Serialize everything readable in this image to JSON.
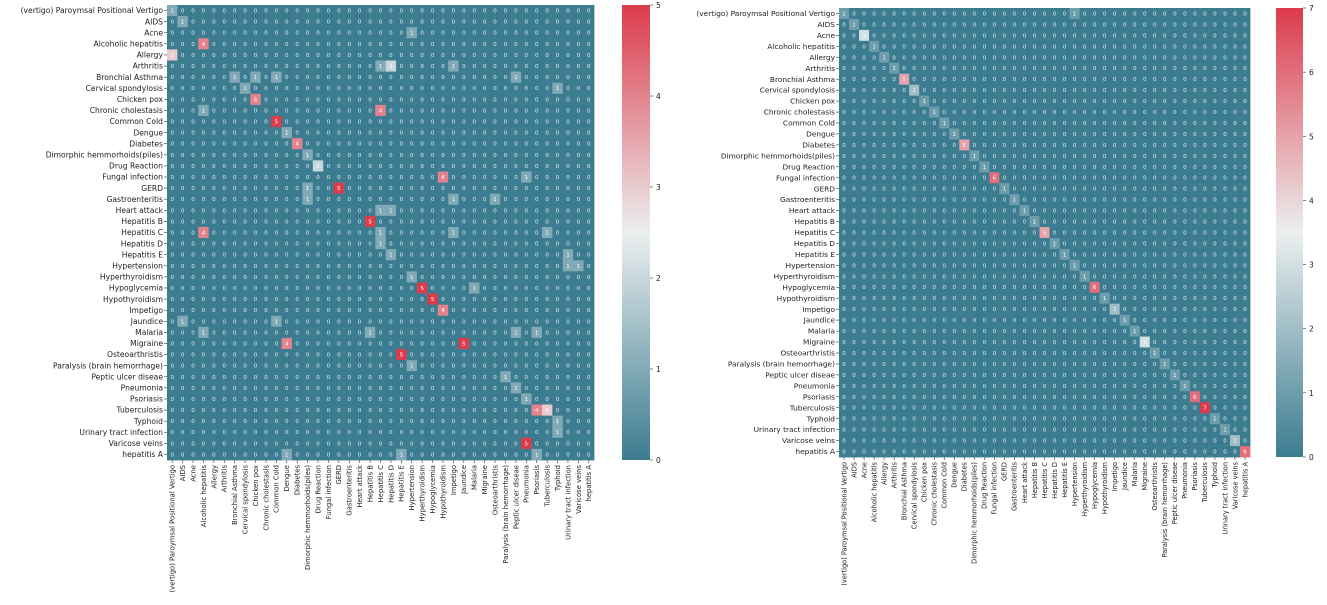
{
  "chart_data": [
    {
      "type": "heatmap",
      "title": "",
      "xlabel": "",
      "ylabel": "",
      "value_range": [
        0,
        5
      ],
      "colorbar_ticks": [
        "0",
        "1",
        "2",
        "3",
        "4",
        "5"
      ],
      "row_labels": [
        "(vertigo) Paroymsal  Positional Vertigo",
        "AIDS",
        "Acne",
        "Alcoholic hepatitis",
        "Allergy",
        "Arthritis",
        "Bronchial Asthma",
        "Cervical spondylosis",
        "Chicken pox",
        "Chronic cholestasis",
        "Common Cold",
        "Dengue",
        "Diabetes",
        "Dimorphic hemmorhoids(piles)",
        "Drug Reaction",
        "Fungal infection",
        "GERD",
        "Gastroenteritis",
        "Heart attack",
        "Hepatitis B",
        "Hepatitis C",
        "Hepatitis D",
        "Hepatitis E",
        "Hypertension",
        "Hyperthyroidism",
        "Hypoglycemia",
        "Hypothyroidism",
        "Impetigo",
        "Jaundice",
        "Malaria",
        "Migraine",
        "Osteoarthristis",
        "Paralysis (brain hemorrhage)",
        "Peptic ulcer diseae",
        "Pneumonia",
        "Psoriasis",
        "Tuberculosis",
        "Typhoid",
        "Urinary tract infection",
        "Varicose veins",
        "hepatitis A"
      ],
      "col_labels": [
        "(vertigo) Paroymsal  Positional Vertigo",
        "AIDS",
        "Acne",
        "Alcoholic hepatitis",
        "Allergy",
        "Arthritis",
        "Bronchial Asthma",
        "Cervical spondylosis",
        "Chicken pox",
        "Chronic cholestasis",
        "Common Cold",
        "Dengue",
        "Diabetes",
        "Dimorphic hemmorhoids(piles)",
        "Drug Reaction",
        "Fungal infection",
        "GERD",
        "Gastroenteritis",
        "Heart attack",
        "Hepatitis B",
        "Hepatitis C",
        "Hepatitis D",
        "Hepatitis E",
        "Hypertension",
        "Hyperthyroidism",
        "Hypoglycemia",
        "Hypothyroidism",
        "Impetigo",
        "Jaundice",
        "Malaria",
        "Migraine",
        "Osteoarthristis",
        "Paralysis (brain hemorrhage)",
        "Peptic ulcer diseae",
        "Pneumonia",
        "Psoriasis",
        "Tuberculosis",
        "Typhoid",
        "Urinary tract infection",
        "Varicose veins",
        "hepatitis A"
      ],
      "nonzero": [
        [
          0,
          0,
          1
        ],
        [
          1,
          1,
          1
        ],
        [
          2,
          23,
          1
        ],
        [
          3,
          3,
          4
        ],
        [
          4,
          0,
          3
        ],
        [
          5,
          20,
          1
        ],
        [
          5,
          21,
          2
        ],
        [
          5,
          27,
          1
        ],
        [
          6,
          6,
          1
        ],
        [
          6,
          8,
          1
        ],
        [
          6,
          10,
          1
        ],
        [
          6,
          33,
          1
        ],
        [
          7,
          7,
          1
        ],
        [
          7,
          37,
          1
        ],
        [
          8,
          8,
          4
        ],
        [
          9,
          3,
          1
        ],
        [
          9,
          20,
          4
        ],
        [
          10,
          10,
          5
        ],
        [
          11,
          11,
          1
        ],
        [
          12,
          12,
          4
        ],
        [
          13,
          13,
          1
        ],
        [
          14,
          14,
          2
        ],
        [
          15,
          26,
          4
        ],
        [
          15,
          34,
          1
        ],
        [
          16,
          13,
          1
        ],
        [
          16,
          16,
          5
        ],
        [
          17,
          13,
          1
        ],
        [
          17,
          27,
          1
        ],
        [
          17,
          31,
          1
        ],
        [
          18,
          20,
          1
        ],
        [
          18,
          21,
          1
        ],
        [
          19,
          19,
          5
        ],
        [
          20,
          3,
          4
        ],
        [
          20,
          20,
          1
        ],
        [
          20,
          27,
          1
        ],
        [
          20,
          36,
          1
        ],
        [
          21,
          20,
          1
        ],
        [
          22,
          21,
          1
        ],
        [
          22,
          38,
          1
        ],
        [
          23,
          38,
          1
        ],
        [
          23,
          39,
          1
        ],
        [
          24,
          23,
          1
        ],
        [
          25,
          24,
          5
        ],
        [
          25,
          29,
          1
        ],
        [
          26,
          25,
          5
        ],
        [
          27,
          26,
          4
        ],
        [
          28,
          1,
          1
        ],
        [
          28,
          10,
          1
        ],
        [
          29,
          3,
          1
        ],
        [
          29,
          19,
          1
        ],
        [
          29,
          33,
          1
        ],
        [
          29,
          35,
          1
        ],
        [
          30,
          11,
          4
        ],
        [
          30,
          28,
          5
        ],
        [
          31,
          22,
          5
        ],
        [
          32,
          23,
          1
        ],
        [
          33,
          32,
          1
        ],
        [
          34,
          33,
          1
        ],
        [
          35,
          34,
          1
        ],
        [
          36,
          35,
          4
        ],
        [
          36,
          36,
          3
        ],
        [
          37,
          37,
          1
        ],
        [
          38,
          37,
          1
        ],
        [
          39,
          34,
          5
        ],
        [
          40,
          11,
          1
        ],
        [
          40,
          22,
          1
        ],
        [
          40,
          35,
          1
        ]
      ]
    },
    {
      "type": "heatmap",
      "title": "",
      "xlabel": "",
      "ylabel": "",
      "value_range": [
        0,
        7
      ],
      "colorbar_ticks": [
        "0",
        "1",
        "2",
        "3",
        "4",
        "5",
        "6",
        "7"
      ],
      "row_labels": [
        "(vertigo) Paroymsal  Positional Vertigo",
        "AIDS",
        "Acne",
        "Alcoholic hepatitis",
        "Allergy",
        "Arthritis",
        "Bronchial Asthma",
        "Cervical spondylosis",
        "Chicken pox",
        "Chronic cholestasis",
        "Common Cold",
        "Dengue",
        "Diabetes",
        "Dimorphic hemmorhoids(piles)",
        "Drug Reaction",
        "Fungal infection",
        "GERD",
        "Gastroenteritis",
        "Heart attack",
        "Hepatitis B",
        "Hepatitis C",
        "Hepatitis D",
        "Hepatitis E",
        "Hypertension",
        "Hyperthyroidism",
        "Hypoglycemia",
        "Hypothyroidism",
        "Impetigo",
        "Jaundice",
        "Malaria",
        "Migraine",
        "Osteoarthristis",
        "Paralysis (brain hemorrhage)",
        "Peptic ulcer diseae",
        "Pneumonia",
        "Psoriasis",
        "Tuberculosis",
        "Typhoid",
        "Urinary tract infection",
        "Varicose veins",
        "hepatitis A"
      ],
      "col_labels": [
        "(vertigo) Paroymsal  Positional Vertigo",
        "AIDS",
        "Acne",
        "Alcoholic hepatitis",
        "Allergy",
        "Arthritis",
        "Bronchial Asthma",
        "Cervical spondylosis",
        "Chicken pox",
        "Chronic cholestasis",
        "Common Cold",
        "Dengue",
        "Diabetes",
        "Dimorphic hemmorhoids(piles)",
        "Drug Reaction",
        "Fungal infection",
        "GERD",
        "Gastroenteritis",
        "Heart attack",
        "Hepatitis B",
        "Hepatitis C",
        "Hepatitis D",
        "Hepatitis E",
        "Hypertension",
        "Hyperthyroidism",
        "Hypoglycemia",
        "Hypothyroidism",
        "Impetigo",
        "Jaundice",
        "Malaria",
        "Migraine",
        "Osteoarthristis",
        "Paralysis (brain hemorrhage)",
        "Peptic ulcer diseae",
        "Pneumonia",
        "Psoriasis",
        "Tuberculosis",
        "Typhoid",
        "Urinary tract infection",
        "Varicose veins",
        "hepatitis A"
      ],
      "diagonal": [
        1,
        1,
        3,
        1,
        1,
        1,
        5,
        2,
        1,
        1,
        1,
        1,
        5,
        1,
        1,
        6,
        1,
        1,
        1,
        1,
        5,
        1,
        1,
        1,
        1,
        6,
        1,
        2,
        1,
        1,
        3,
        1,
        1,
        1,
        1,
        6,
        7,
        1,
        1,
        2,
        6
      ],
      "nonzero": [
        [
          0,
          23,
          1
        ]
      ]
    }
  ]
}
